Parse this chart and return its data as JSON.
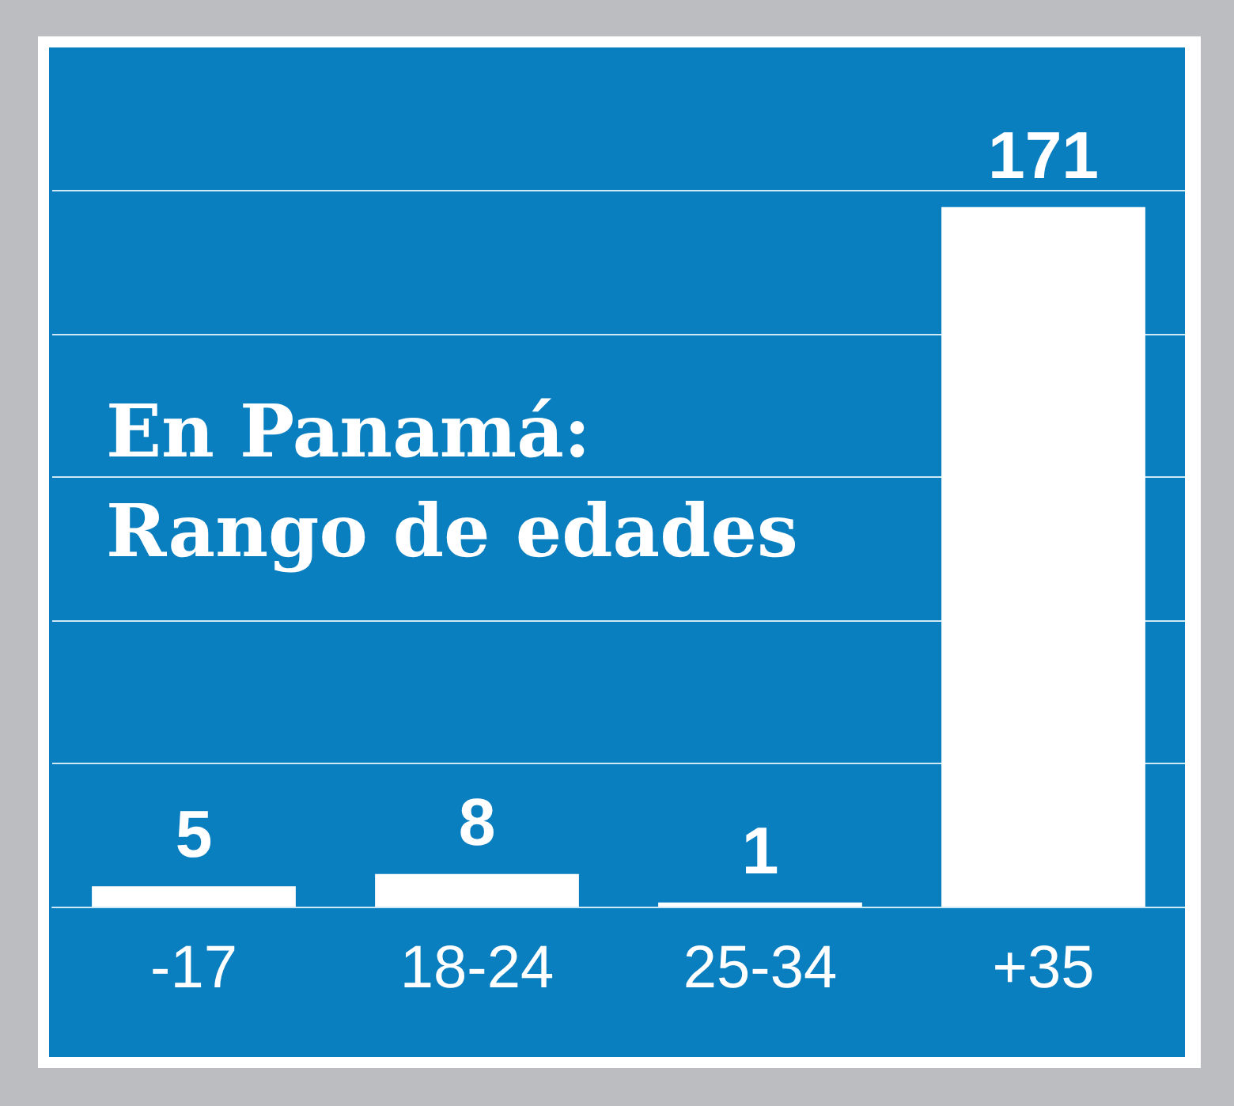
{
  "chart_data": {
    "type": "bar",
    "title": "En Panamá: Rango de edades",
    "categories": [
      "-17",
      "18-24",
      "25-34",
      "+35"
    ],
    "values": [
      5,
      8,
      1,
      171
    ],
    "color": "#ffffff",
    "data_labels": true,
    "ylim": [
      0,
      210
    ],
    "yticks": [
      {
        "value": 0,
        "label": null
      },
      {
        "value": 35,
        "label": null
      },
      {
        "value": 70,
        "label": null
      },
      {
        "value": 105,
        "label": null
      },
      {
        "value": 140,
        "label": null
      },
      {
        "value": 175,
        "label": null
      }
    ],
    "grid": "y",
    "tick_labels": "x"
  }
}
